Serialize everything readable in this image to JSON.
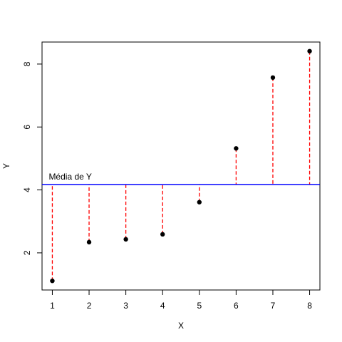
{
  "chart_data": {
    "type": "scatter",
    "xlabel": "X",
    "ylabel": "Y",
    "x": [
      1,
      2,
      3,
      4,
      5,
      6,
      7,
      8
    ],
    "series": [
      {
        "color": "#000000",
        "values": [
          1.11,
          2.34,
          2.43,
          2.59,
          3.61,
          5.32,
          7.57,
          8.41
        ]
      }
    ],
    "hline": {
      "value": 4.17,
      "label": "Média de Y",
      "color": "#0000ff"
    },
    "residual_color": "#ff0000",
    "xlim": [
      0.72,
      8.28
    ],
    "xticks": [
      1,
      2,
      3,
      4,
      5,
      6,
      7,
      8
    ],
    "ylim": [
      0.82,
      8.7
    ],
    "yticks": [
      2,
      4,
      6,
      8
    ]
  }
}
